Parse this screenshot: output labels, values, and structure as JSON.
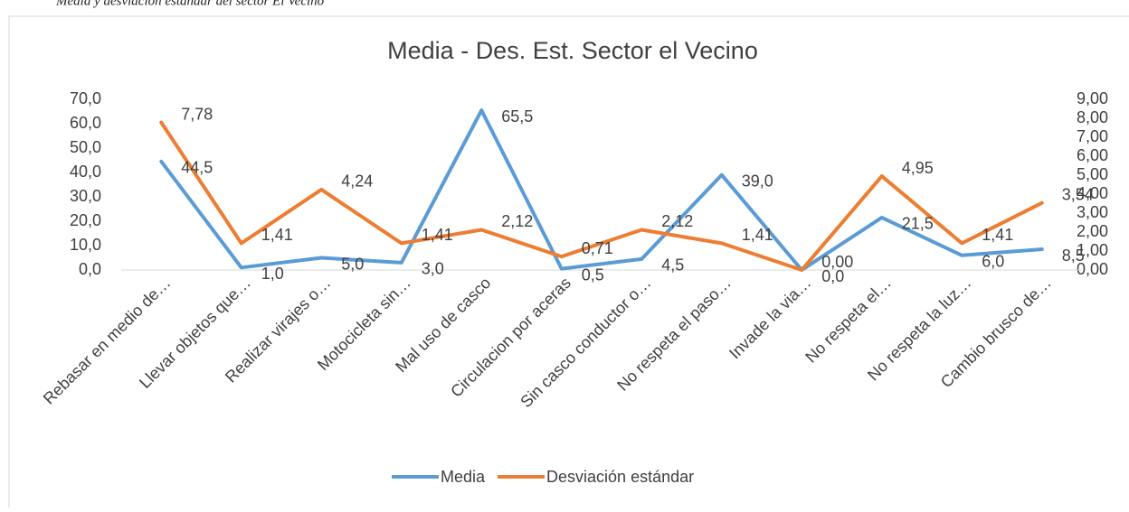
{
  "caption": "Media y desviación estándar del sector El Vecino",
  "chart_data": {
    "type": "line",
    "title": "Media - Des. Est. Sector el Vecino",
    "categories": [
      "Rebasar en medio de…",
      "Llevar objetos que…",
      "Realizar virajes o…",
      "Motocicleta sin…",
      "Mal uso de casco",
      "Circulacion por aceras",
      "Sin casco conductor o…",
      "No respeta el paso…",
      "Invade la via…",
      "No respeta el…",
      "No respeta la luz…",
      "Cambio brusco de…"
    ],
    "series": [
      {
        "name": "Media",
        "color": "#5b9bd5",
        "axis": "y",
        "values": [
          44.5,
          1.0,
          5.0,
          3.0,
          65.5,
          0.5,
          4.5,
          39.0,
          0.0,
          21.5,
          6.0,
          8.5
        ],
        "value_labels": [
          "44,5",
          "1,0",
          "5,0",
          "3,0",
          "65,5",
          "0,5",
          "4,5",
          "39,0",
          "0,0",
          "21,5",
          "6,0",
          "8,5"
        ]
      },
      {
        "name": "Desviación estándar",
        "color": "#ed7d31",
        "axis": "y2",
        "values": [
          7.78,
          1.41,
          4.24,
          1.41,
          2.12,
          0.71,
          2.12,
          1.41,
          0.0,
          4.95,
          1.41,
          3.54
        ],
        "value_labels": [
          "7,78",
          "1,41",
          "4,24",
          "1,41",
          "2,12",
          "0,71",
          "2,12",
          "1,41",
          "0,00",
          "4,95",
          "1,41",
          "3,54"
        ]
      }
    ],
    "ylim": [
      0,
      70
    ],
    "yticks": [
      {
        "value": 0,
        "label": "0,0"
      },
      {
        "value": 10,
        "label": "10,0"
      },
      {
        "value": 20,
        "label": "20,0"
      },
      {
        "value": 30,
        "label": "30,0"
      },
      {
        "value": 40,
        "label": "40,0"
      },
      {
        "value": 50,
        "label": "50,0"
      },
      {
        "value": 60,
        "label": "60,0"
      },
      {
        "value": 70,
        "label": "70,0"
      }
    ],
    "y2lim": [
      0,
      9
    ],
    "y2ticks": [
      {
        "value": 0,
        "label": "0,00"
      },
      {
        "value": 1,
        "label": "1,00"
      },
      {
        "value": 2,
        "label": "2,00"
      },
      {
        "value": 3,
        "label": "3,00"
      },
      {
        "value": 4,
        "label": "4,00"
      },
      {
        "value": 5,
        "label": "5,00"
      },
      {
        "value": 6,
        "label": "6,00"
      },
      {
        "value": 7,
        "label": "7,00"
      },
      {
        "value": 8,
        "label": "8,00"
      },
      {
        "value": 9,
        "label": "9,00"
      }
    ],
    "legend": "bottom",
    "grid": false
  }
}
